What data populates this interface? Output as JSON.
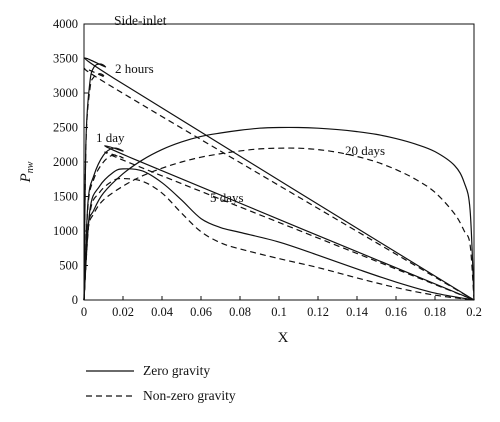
{
  "chart_data": {
    "type": "line",
    "title": "Side-inlet",
    "xlabel": "X",
    "ylabel": "P",
    "ylabel_sub": "nw",
    "xlim": [
      0,
      0.2
    ],
    "ylim": [
      0,
      4000
    ],
    "xticks": [
      "0",
      "0.02",
      "0.04",
      "0.06",
      "0.08",
      "0.1",
      "0.12",
      "0.14",
      "0.16",
      "0.18",
      "0.2"
    ],
    "yticks": [
      "0",
      "500",
      "1000",
      "1500",
      "2000",
      "2500",
      "3000",
      "3500",
      "4000"
    ],
    "grid": false,
    "legend": {
      "placement": "bottom-left",
      "entries": [
        {
          "label": "Zero gravity",
          "style": "solid"
        },
        {
          "label": "Non-zero gravity",
          "style": "dashed"
        }
      ]
    },
    "annotations": [
      "2 hours",
      "1 day",
      "5 days",
      "20 days"
    ],
    "series": [
      {
        "time": "2 hours",
        "gravity": "zero",
        "style": "solid",
        "x": [
          0,
          0.001,
          0.003,
          0.005,
          0.008,
          0.011,
          0.015,
          0.2
        ],
        "y": [
          0,
          2300,
          3150,
          3370,
          3420,
          3380,
          3220,
          0
        ]
      },
      {
        "time": "2 hours",
        "gravity": "non-zero",
        "style": "dashed",
        "x": [
          0,
          0.001,
          0.003,
          0.005,
          0.008,
          0.011,
          0.015,
          0.2
        ],
        "y": [
          0,
          2250,
          3050,
          3230,
          3280,
          3230,
          3080,
          0
        ]
      },
      {
        "time": "1 day",
        "gravity": "zero",
        "style": "solid",
        "x": [
          0,
          0.002,
          0.005,
          0.01,
          0.015,
          0.02,
          0.025,
          0.2
        ],
        "y": [
          0,
          1400,
          1800,
          2100,
          2200,
          2160,
          2050,
          0
        ]
      },
      {
        "time": "1 day",
        "gravity": "non-zero",
        "style": "dashed",
        "x": [
          0,
          0.002,
          0.005,
          0.01,
          0.015,
          0.02,
          0.025,
          0.2
        ],
        "y": [
          0,
          1350,
          1750,
          2000,
          2100,
          2060,
          1970,
          0
        ]
      },
      {
        "time": "5 days",
        "gravity": "zero",
        "style": "solid",
        "x": [
          0,
          0.003,
          0.008,
          0.015,
          0.02,
          0.03,
          0.04,
          0.05,
          0.06,
          0.07,
          0.08,
          0.1,
          0.12,
          0.14,
          0.16,
          0.18,
          0.2
        ],
        "y": [
          0,
          1300,
          1650,
          1850,
          1900,
          1870,
          1700,
          1450,
          1180,
          1050,
          980,
          840,
          650,
          450,
          260,
          100,
          0
        ]
      },
      {
        "time": "5 days",
        "gravity": "non-zero",
        "style": "dashed",
        "x": [
          0,
          0.003,
          0.008,
          0.015,
          0.02,
          0.03,
          0.04,
          0.05,
          0.06,
          0.07,
          0.08,
          0.1,
          0.12,
          0.14,
          0.16,
          0.18,
          0.2
        ],
        "y": [
          0,
          1250,
          1560,
          1730,
          1760,
          1720,
          1550,
          1260,
          990,
          830,
          740,
          600,
          470,
          320,
          180,
          70,
          0
        ]
      },
      {
        "time": "20 days",
        "gravity": "zero",
        "style": "solid",
        "x": [
          0,
          0.002,
          0.005,
          0.01,
          0.02,
          0.03,
          0.04,
          0.05,
          0.06,
          0.07,
          0.08,
          0.09,
          0.1,
          0.11,
          0.12,
          0.13,
          0.14,
          0.15,
          0.16,
          0.17,
          0.18,
          0.19,
          0.195,
          0.198,
          0.2
        ],
        "y": [
          0,
          1050,
          1300,
          1550,
          1830,
          2030,
          2180,
          2290,
          2370,
          2420,
          2460,
          2490,
          2500,
          2500,
          2490,
          2470,
          2440,
          2400,
          2340,
          2260,
          2150,
          1950,
          1700,
          1300,
          0
        ]
      },
      {
        "time": "20 days",
        "gravity": "non-zero",
        "style": "dashed",
        "x": [
          0,
          0.002,
          0.005,
          0.01,
          0.02,
          0.03,
          0.04,
          0.05,
          0.06,
          0.07,
          0.08,
          0.09,
          0.1,
          0.11,
          0.12,
          0.13,
          0.14,
          0.15,
          0.16,
          0.17,
          0.18,
          0.19,
          0.195,
          0.198,
          0.2
        ],
        "y": [
          0,
          1000,
          1250,
          1450,
          1650,
          1800,
          1910,
          2000,
          2070,
          2120,
          2160,
          2190,
          2200,
          2200,
          2180,
          2140,
          2080,
          2000,
          1890,
          1750,
          1560,
          1250,
          1000,
          800,
          0
        ]
      }
    ]
  }
}
